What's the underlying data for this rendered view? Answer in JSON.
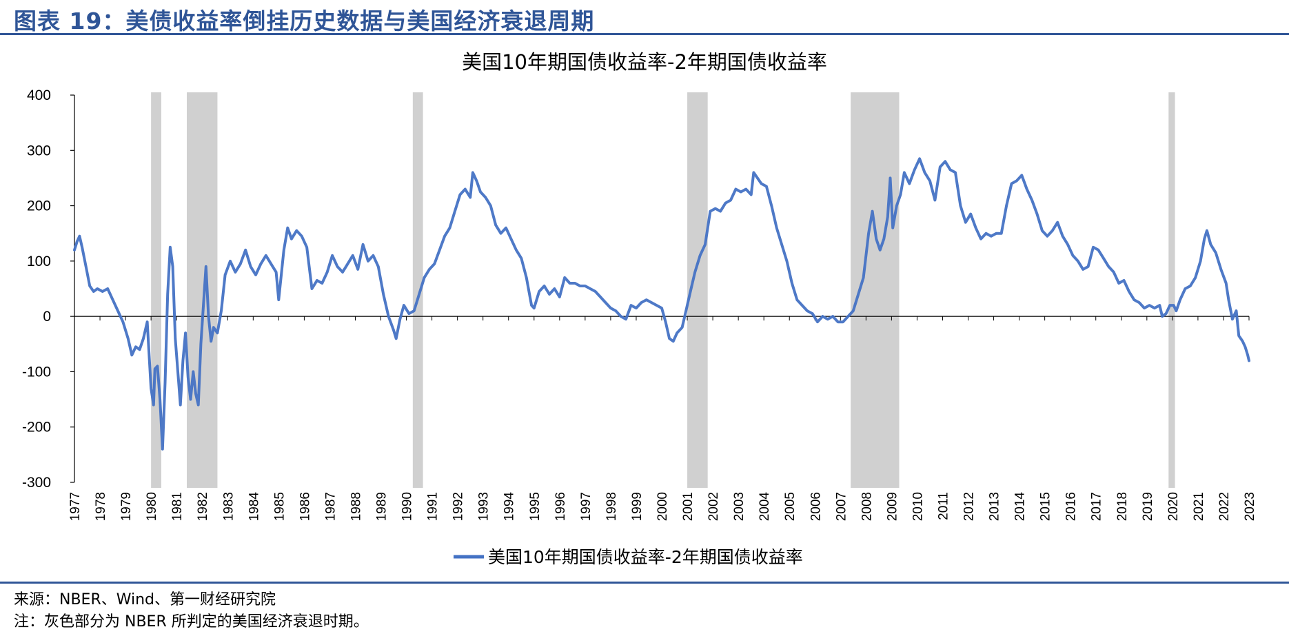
{
  "header": {
    "title": "图表 19：美债收益率倒挂历史数据与美国经济衰退周期"
  },
  "footer": {
    "source": "来源：NBER、Wind、第一财经研究院",
    "note": "注：灰色部分为 NBER 所判定的美国经济衰退时期。"
  },
  "colors": {
    "header_blue": "#2f5597",
    "series": "#4472c4",
    "recession": "#d0d0d0"
  },
  "chart_data": {
    "type": "line",
    "title": "美国10年期国债收益率-2年期国债收益率",
    "xlabel": "",
    "ylabel": "",
    "ylim": [
      -300,
      400
    ],
    "yticks": [
      400,
      300,
      200,
      100,
      0,
      -100,
      -200,
      -300
    ],
    "xlim": [
      1977,
      2023
    ],
    "xticks": [
      "1977",
      "1978",
      "1979",
      "1980",
      "1981",
      "1982",
      "1983",
      "1984",
      "1985",
      "1986",
      "1987",
      "1988",
      "1989",
      "1990",
      "1991",
      "1992",
      "1993",
      "1994",
      "1995",
      "1996",
      "1997",
      "1998",
      "1999",
      "2000",
      "2001",
      "2002",
      "2003",
      "2004",
      "2005",
      "2006",
      "2007",
      "2008",
      "2009",
      "2010",
      "2011",
      "2012",
      "2013",
      "2014",
      "2015",
      "2016",
      "2017",
      "2018",
      "2019",
      "2020",
      "2021",
      "2022",
      "2023"
    ],
    "legend": {
      "position": "bottom",
      "entries": [
        "美国10年期国债收益率-2年期国债收益率"
      ]
    },
    "recessions": [
      [
        1980.0,
        1980.4
      ],
      [
        1981.4,
        1982.6
      ],
      [
        1990.25,
        1990.65
      ],
      [
        2001.0,
        2001.8
      ],
      [
        2007.4,
        2009.3
      ],
      [
        2019.85,
        2020.1
      ]
    ],
    "series": [
      {
        "name": "美国10年期国债收益率-2年期国债收益率",
        "points": [
          [
            1977.0,
            120
          ],
          [
            1977.1,
            135
          ],
          [
            1977.2,
            145
          ],
          [
            1977.3,
            125
          ],
          [
            1977.45,
            90
          ],
          [
            1977.6,
            55
          ],
          [
            1977.75,
            45
          ],
          [
            1977.9,
            50
          ],
          [
            1978.1,
            45
          ],
          [
            1978.3,
            50
          ],
          [
            1978.5,
            30
          ],
          [
            1978.7,
            10
          ],
          [
            1978.9,
            -10
          ],
          [
            1979.1,
            -40
          ],
          [
            1979.25,
            -70
          ],
          [
            1979.4,
            -55
          ],
          [
            1979.55,
            -60
          ],
          [
            1979.7,
            -40
          ],
          [
            1979.85,
            -10
          ],
          [
            1980.0,
            -130
          ],
          [
            1980.1,
            -160
          ],
          [
            1980.15,
            -95
          ],
          [
            1980.25,
            -90
          ],
          [
            1980.35,
            -150
          ],
          [
            1980.45,
            -240
          ],
          [
            1980.55,
            -120
          ],
          [
            1980.65,
            40
          ],
          [
            1980.75,
            125
          ],
          [
            1980.85,
            90
          ],
          [
            1980.95,
            -40
          ],
          [
            1981.05,
            -100
          ],
          [
            1981.15,
            -160
          ],
          [
            1981.25,
            -80
          ],
          [
            1981.35,
            -30
          ],
          [
            1981.45,
            -110
          ],
          [
            1981.55,
            -150
          ],
          [
            1981.65,
            -100
          ],
          [
            1981.75,
            -140
          ],
          [
            1981.85,
            -160
          ],
          [
            1981.95,
            -50
          ],
          [
            1982.05,
            20
          ],
          [
            1982.15,
            90
          ],
          [
            1982.25,
            0
          ],
          [
            1982.35,
            -45
          ],
          [
            1982.45,
            -20
          ],
          [
            1982.6,
            -30
          ],
          [
            1982.75,
            10
          ],
          [
            1982.9,
            75
          ],
          [
            1983.1,
            100
          ],
          [
            1983.3,
            80
          ],
          [
            1983.5,
            95
          ],
          [
            1983.7,
            120
          ],
          [
            1983.9,
            90
          ],
          [
            1984.1,
            75
          ],
          [
            1984.3,
            95
          ],
          [
            1984.5,
            110
          ],
          [
            1984.7,
            95
          ],
          [
            1984.9,
            80
          ],
          [
            1985.0,
            30
          ],
          [
            1985.2,
            120
          ],
          [
            1985.35,
            160
          ],
          [
            1985.5,
            140
          ],
          [
            1985.7,
            155
          ],
          [
            1985.9,
            145
          ],
          [
            1986.1,
            125
          ],
          [
            1986.3,
            50
          ],
          [
            1986.5,
            65
          ],
          [
            1986.7,
            60
          ],
          [
            1986.9,
            80
          ],
          [
            1987.1,
            110
          ],
          [
            1987.3,
            90
          ],
          [
            1987.5,
            80
          ],
          [
            1987.7,
            95
          ],
          [
            1987.9,
            110
          ],
          [
            1988.1,
            85
          ],
          [
            1988.3,
            130
          ],
          [
            1988.5,
            100
          ],
          [
            1988.7,
            110
          ],
          [
            1988.9,
            90
          ],
          [
            1989.1,
            40
          ],
          [
            1989.3,
            0
          ],
          [
            1989.5,
            -25
          ],
          [
            1989.6,
            -40
          ],
          [
            1989.75,
            -5
          ],
          [
            1989.9,
            20
          ],
          [
            1990.1,
            5
          ],
          [
            1990.3,
            10
          ],
          [
            1990.5,
            40
          ],
          [
            1990.7,
            70
          ],
          [
            1990.9,
            85
          ],
          [
            1991.1,
            95
          ],
          [
            1991.3,
            120
          ],
          [
            1991.5,
            145
          ],
          [
            1991.7,
            160
          ],
          [
            1991.9,
            190
          ],
          [
            1992.1,
            220
          ],
          [
            1992.3,
            230
          ],
          [
            1992.5,
            215
          ],
          [
            1992.6,
            260
          ],
          [
            1992.75,
            245
          ],
          [
            1992.9,
            225
          ],
          [
            1993.1,
            215
          ],
          [
            1993.3,
            200
          ],
          [
            1993.5,
            165
          ],
          [
            1993.7,
            150
          ],
          [
            1993.9,
            160
          ],
          [
            1994.1,
            140
          ],
          [
            1994.3,
            120
          ],
          [
            1994.5,
            105
          ],
          [
            1994.7,
            70
          ],
          [
            1994.9,
            20
          ],
          [
            1995.0,
            15
          ],
          [
            1995.2,
            45
          ],
          [
            1995.4,
            55
          ],
          [
            1995.6,
            40
          ],
          [
            1995.8,
            50
          ],
          [
            1996.0,
            35
          ],
          [
            1996.2,
            70
          ],
          [
            1996.4,
            60
          ],
          [
            1996.6,
            60
          ],
          [
            1996.8,
            55
          ],
          [
            1997.0,
            55
          ],
          [
            1997.2,
            50
          ],
          [
            1997.4,
            45
          ],
          [
            1997.6,
            35
          ],
          [
            1997.8,
            25
          ],
          [
            1998.0,
            15
          ],
          [
            1998.2,
            10
          ],
          [
            1998.4,
            0
          ],
          [
            1998.6,
            -5
          ],
          [
            1998.8,
            20
          ],
          [
            1999.0,
            15
          ],
          [
            1999.2,
            25
          ],
          [
            1999.4,
            30
          ],
          [
            1999.6,
            25
          ],
          [
            1999.8,
            20
          ],
          [
            2000.0,
            15
          ],
          [
            2000.15,
            -10
          ],
          [
            2000.3,
            -40
          ],
          [
            2000.45,
            -45
          ],
          [
            2000.6,
            -30
          ],
          [
            2000.8,
            -20
          ],
          [
            2000.95,
            10
          ],
          [
            2001.1,
            40
          ],
          [
            2001.3,
            80
          ],
          [
            2001.5,
            110
          ],
          [
            2001.7,
            130
          ],
          [
            2001.9,
            190
          ],
          [
            2002.1,
            195
          ],
          [
            2002.3,
            190
          ],
          [
            2002.5,
            205
          ],
          [
            2002.7,
            210
          ],
          [
            2002.9,
            230
          ],
          [
            2003.1,
            225
          ],
          [
            2003.3,
            230
          ],
          [
            2003.5,
            220
          ],
          [
            2003.6,
            260
          ],
          [
            2003.75,
            250
          ],
          [
            2003.9,
            240
          ],
          [
            2004.1,
            235
          ],
          [
            2004.3,
            200
          ],
          [
            2004.5,
            160
          ],
          [
            2004.7,
            130
          ],
          [
            2004.9,
            100
          ],
          [
            2005.1,
            60
          ],
          [
            2005.3,
            30
          ],
          [
            2005.5,
            20
          ],
          [
            2005.7,
            10
          ],
          [
            2005.9,
            5
          ],
          [
            2006.1,
            -10
          ],
          [
            2006.3,
            0
          ],
          [
            2006.5,
            -5
          ],
          [
            2006.7,
            0
          ],
          [
            2006.9,
            -10
          ],
          [
            2007.1,
            -10
          ],
          [
            2007.3,
            0
          ],
          [
            2007.5,
            10
          ],
          [
            2007.7,
            40
          ],
          [
            2007.9,
            70
          ],
          [
            2008.1,
            150
          ],
          [
            2008.25,
            190
          ],
          [
            2008.4,
            140
          ],
          [
            2008.55,
            120
          ],
          [
            2008.7,
            140
          ],
          [
            2008.85,
            180
          ],
          [
            2008.95,
            250
          ],
          [
            2009.05,
            160
          ],
          [
            2009.2,
            200
          ],
          [
            2009.35,
            220
          ],
          [
            2009.5,
            260
          ],
          [
            2009.7,
            240
          ],
          [
            2009.9,
            265
          ],
          [
            2010.1,
            285
          ],
          [
            2010.3,
            260
          ],
          [
            2010.5,
            245
          ],
          [
            2010.7,
            210
          ],
          [
            2010.9,
            270
          ],
          [
            2011.1,
            280
          ],
          [
            2011.3,
            265
          ],
          [
            2011.5,
            260
          ],
          [
            2011.7,
            200
          ],
          [
            2011.9,
            170
          ],
          [
            2012.1,
            185
          ],
          [
            2012.3,
            160
          ],
          [
            2012.5,
            140
          ],
          [
            2012.7,
            150
          ],
          [
            2012.9,
            145
          ],
          [
            2013.1,
            150
          ],
          [
            2013.3,
            150
          ],
          [
            2013.5,
            200
          ],
          [
            2013.7,
            240
          ],
          [
            2013.9,
            245
          ],
          [
            2014.1,
            255
          ],
          [
            2014.3,
            230
          ],
          [
            2014.5,
            210
          ],
          [
            2014.7,
            185
          ],
          [
            2014.9,
            155
          ],
          [
            2015.1,
            145
          ],
          [
            2015.3,
            155
          ],
          [
            2015.5,
            170
          ],
          [
            2015.7,
            145
          ],
          [
            2015.9,
            130
          ],
          [
            2016.1,
            110
          ],
          [
            2016.3,
            100
          ],
          [
            2016.5,
            85
          ],
          [
            2016.7,
            90
          ],
          [
            2016.9,
            125
          ],
          [
            2017.1,
            120
          ],
          [
            2017.3,
            105
          ],
          [
            2017.5,
            90
          ],
          [
            2017.7,
            80
          ],
          [
            2017.9,
            60
          ],
          [
            2018.1,
            65
          ],
          [
            2018.3,
            45
          ],
          [
            2018.5,
            30
          ],
          [
            2018.7,
            25
          ],
          [
            2018.9,
            15
          ],
          [
            2019.1,
            20
          ],
          [
            2019.3,
            15
          ],
          [
            2019.5,
            20
          ],
          [
            2019.6,
            0
          ],
          [
            2019.75,
            5
          ],
          [
            2019.9,
            20
          ],
          [
            2020.05,
            20
          ],
          [
            2020.15,
            10
          ],
          [
            2020.3,
            30
          ],
          [
            2020.5,
            50
          ],
          [
            2020.7,
            55
          ],
          [
            2020.9,
            70
          ],
          [
            2021.1,
            100
          ],
          [
            2021.25,
            140
          ],
          [
            2021.35,
            155
          ],
          [
            2021.5,
            130
          ],
          [
            2021.7,
            115
          ],
          [
            2021.9,
            85
          ],
          [
            2022.1,
            60
          ],
          [
            2022.2,
            30
          ],
          [
            2022.35,
            -5
          ],
          [
            2022.5,
            10
          ],
          [
            2022.6,
            -35
          ],
          [
            2022.75,
            -45
          ],
          [
            2022.85,
            -55
          ],
          [
            2022.95,
            -70
          ],
          [
            2023.0,
            -80
          ]
        ]
      }
    ]
  }
}
